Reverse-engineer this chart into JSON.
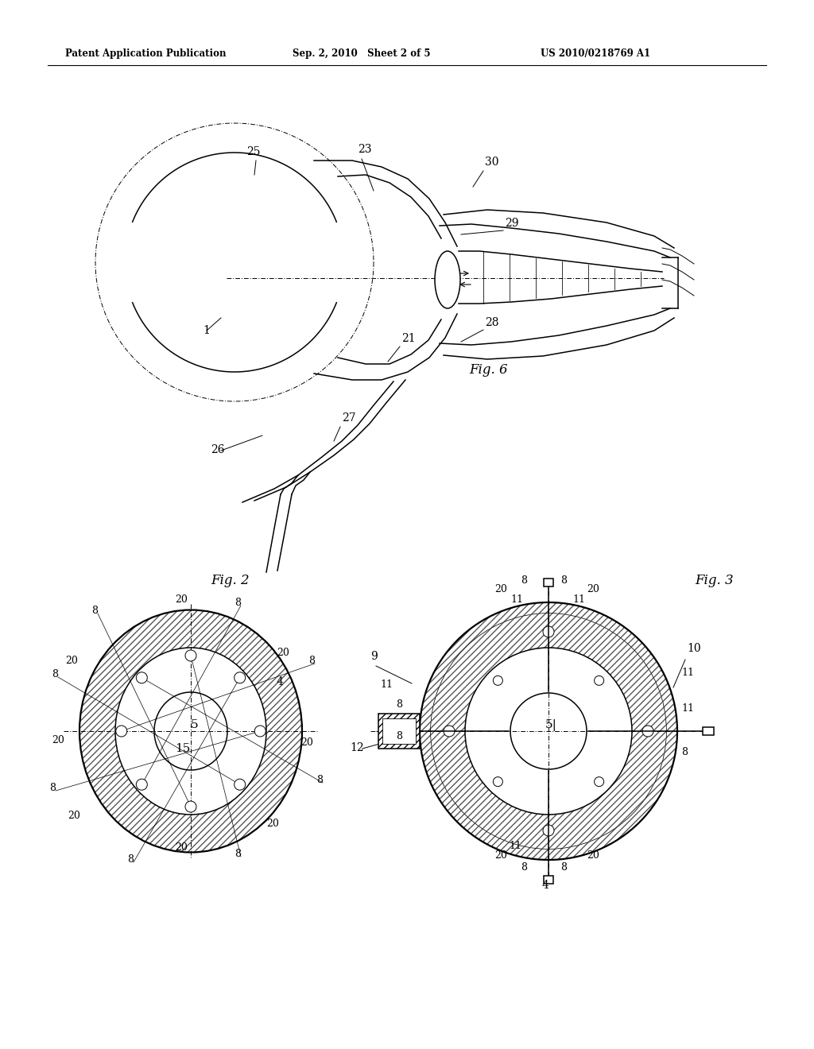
{
  "bg_color": "#ffffff",
  "line_color": "#000000",
  "header_left": "Patent Application Publication",
  "header_mid": "Sep. 2, 2010   Sheet 2 of 5",
  "header_right": "US 2010/0218769 A1",
  "fig6_label": "Fig. 6",
  "fig2_label": "Fig. 2",
  "fig3_label": "Fig. 3"
}
